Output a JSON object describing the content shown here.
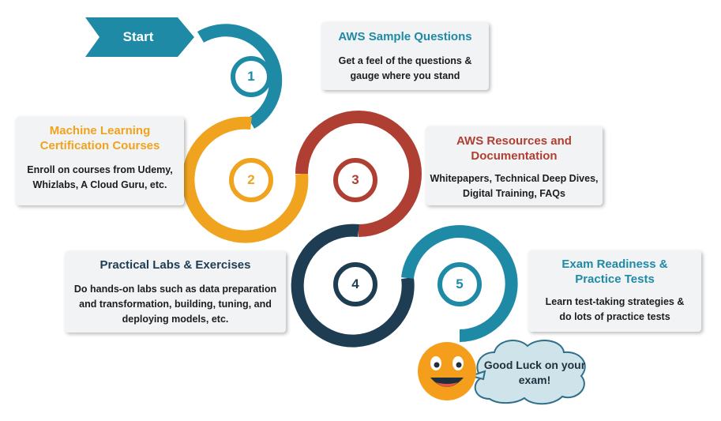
{
  "start_label": "Start",
  "steps": [
    {
      "number": "1",
      "title": "AWS Sample Questions",
      "body": "Get a feel of the questions & gauge where you stand",
      "color": "#1f8aa6"
    },
    {
      "number": "2",
      "title": "Machine Learning Certification Courses",
      "body": "Enroll on courses from Udemy, Whizlabs, A Cloud Guru, etc.",
      "color": "#f0a31e"
    },
    {
      "number": "3",
      "title": "AWS Resources and Documentation",
      "body": "Whitepapers, Technical Deep Dives, Digital Training, FAQs",
      "color": "#b03f33"
    },
    {
      "number": "4",
      "title": "Practical Labs & Exercises",
      "body": "Do hands-on labs such as data preparation and transformation, building, tuning, and deploying models, etc.",
      "color": "#1f3d52"
    },
    {
      "number": "5",
      "title": "Exam Readiness & Practice Tests",
      "body": "Learn test-taking strategies & do lots of practice tests",
      "color": "#1f8aa6"
    }
  ],
  "closing_message": "Good Luck on your exam!",
  "colors": {
    "accent_teal": "#1f8aa6",
    "orange": "#f0a31e",
    "red": "#b03f33",
    "navy": "#1f3d52",
    "card_background": "#f2f3f4",
    "cloud_fill": "#cfe4ea",
    "smiley": "#f59e1b"
  },
  "icons": [
    "start-arrow-icon",
    "smiley-face-icon",
    "speech-cloud-icon"
  ]
}
